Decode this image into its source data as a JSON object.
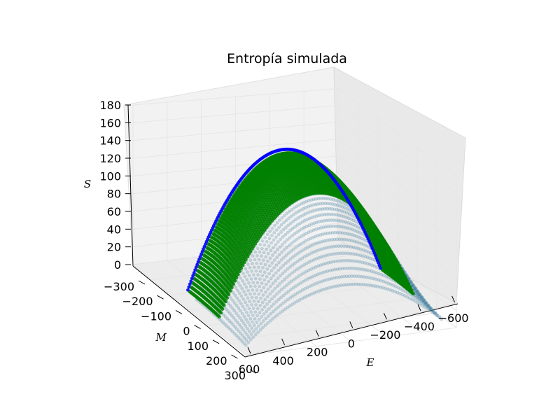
{
  "chart_data": {
    "type": "scatter",
    "projection": "3d",
    "title": "Entropía simulada",
    "xlabel": "E",
    "ylabel": "M",
    "zlabel": "S",
    "xlim": [
      600,
      -600
    ],
    "ylim": [
      -300,
      300
    ],
    "zlim": [
      0,
      180
    ],
    "x_ticks": [
      "600",
      "400",
      "200",
      "0",
      "−200",
      "−400",
      "−600"
    ],
    "y_ticks": [
      "−300",
      "−200",
      "−100",
      "0",
      "100",
      "200",
      "300"
    ],
    "z_ticks": [
      "0",
      "20",
      "40",
      "60",
      "80",
      "100",
      "120",
      "140",
      "160",
      "180"
    ],
    "grid": true,
    "series": [
      {
        "color": "#0000ff",
        "marker": "o",
        "description_values": {
          "E": [
            -560,
            -400,
            -200,
            0,
            200,
            400,
            560
          ],
          "S_upper_at_M0": [
            3,
            95,
            150,
            162,
            150,
            95,
            3
          ]
        }
      },
      {
        "color": "#008000",
        "marker": "o",
        "description_values": {
          "E": [
            -560,
            -400,
            -200,
            0,
            200,
            400,
            560
          ],
          "S_upper_at_M0": [
            3,
            95,
            150,
            162,
            150,
            95,
            3
          ]
        }
      }
    ]
  }
}
